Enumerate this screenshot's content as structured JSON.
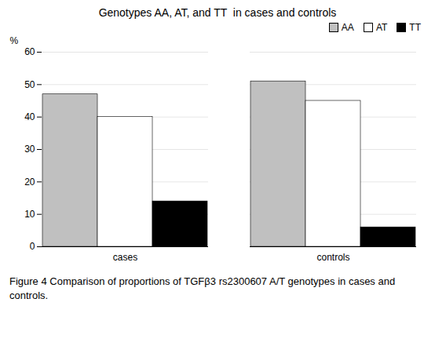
{
  "chart_data": {
    "type": "bar",
    "title": "Genotypes AA, AT, and TT  in cases and controls",
    "categories": [
      "cases",
      "controls"
    ],
    "series": [
      {
        "name": "AA",
        "color": "#c0c0c0",
        "values": [
          47,
          51
        ]
      },
      {
        "name": "AT",
        "color": "#ffffff",
        "values": [
          40,
          45
        ]
      },
      {
        "name": "TT",
        "color": "#000000",
        "values": [
          14,
          6
        ]
      }
    ],
    "ylabel": "%",
    "ylim": [
      0,
      60
    ],
    "yticks": [
      0,
      10,
      20,
      30,
      40,
      50,
      60
    ],
    "grid": true,
    "legend": "upper right",
    "caption": "Figure 4 Comparison of proportions of TGFβ3 rs2300607 A/T genotypes in cases and controls."
  }
}
